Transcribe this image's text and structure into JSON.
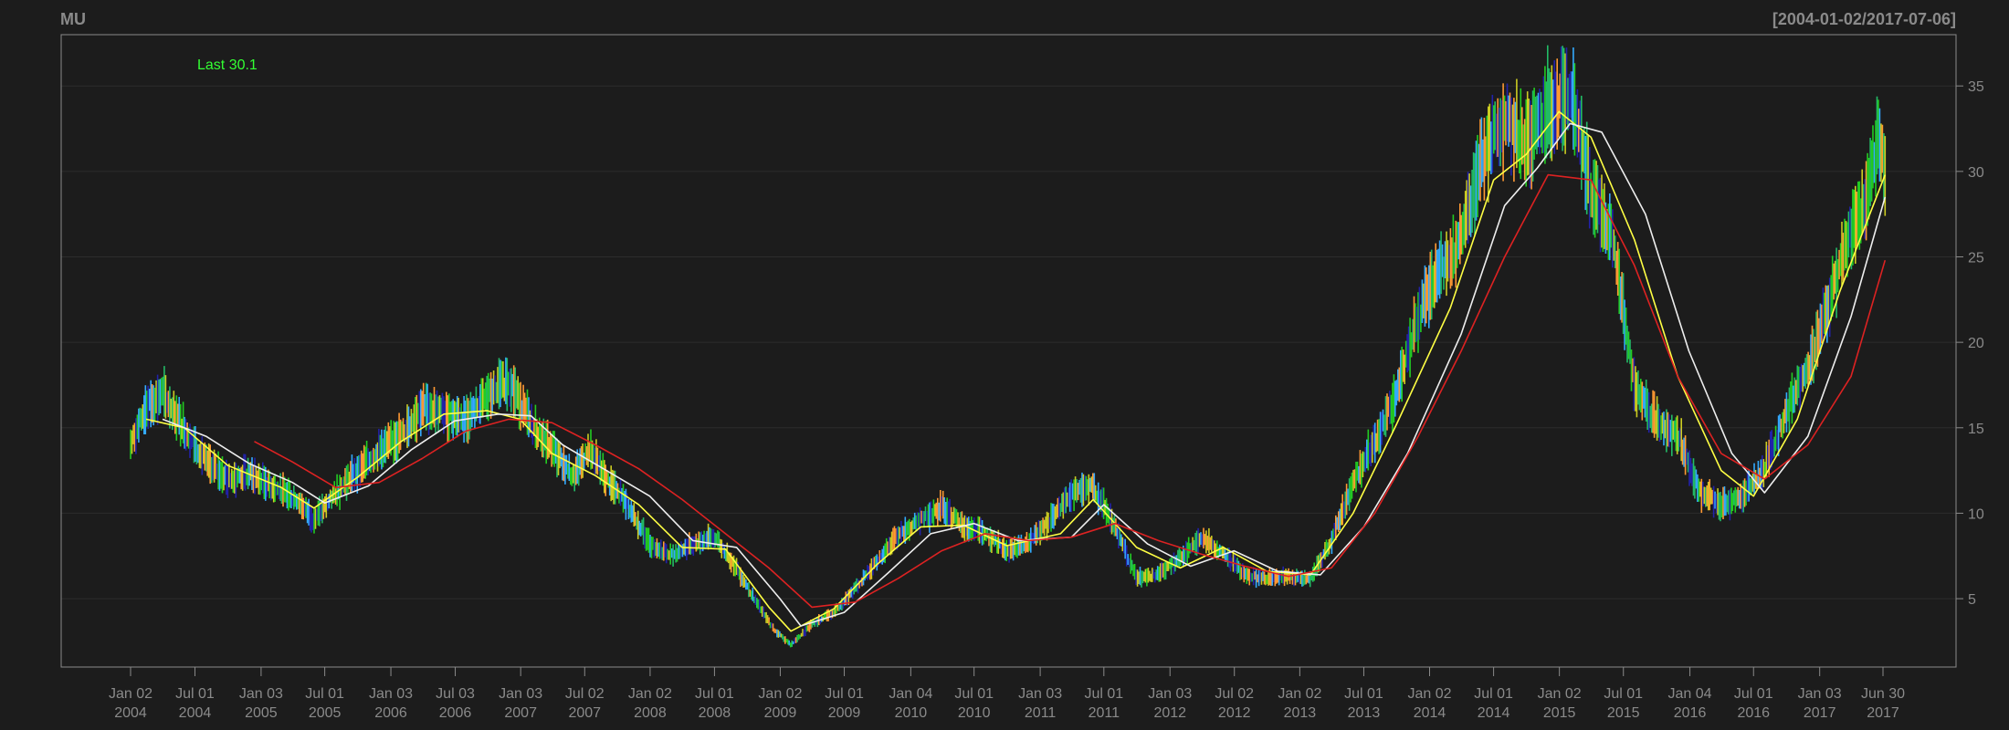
{
  "chart_data": {
    "type": "line",
    "title": "MU",
    "date_range": "[2004-01-02/2017-07-06]",
    "last_label": "Last 30.1",
    "ylim": [
      1,
      38
    ],
    "y_ticks": [
      5,
      10,
      15,
      20,
      25,
      30,
      35
    ],
    "x_ticks": [
      {
        "date": "2004-01-02",
        "line1": "Jan 02",
        "line2": "2004"
      },
      {
        "date": "2004-07-01",
        "line1": "Jul 01",
        "line2": "2004"
      },
      {
        "date": "2005-01-03",
        "line1": "Jan 03",
        "line2": "2005"
      },
      {
        "date": "2005-07-01",
        "line1": "Jul 01",
        "line2": "2005"
      },
      {
        "date": "2006-01-03",
        "line1": "Jan 03",
        "line2": "2006"
      },
      {
        "date": "2006-07-03",
        "line1": "Jul 03",
        "line2": "2006"
      },
      {
        "date": "2007-01-03",
        "line1": "Jan 03",
        "line2": "2007"
      },
      {
        "date": "2007-07-02",
        "line1": "Jul 02",
        "line2": "2007"
      },
      {
        "date": "2008-01-02",
        "line1": "Jan 02",
        "line2": "2008"
      },
      {
        "date": "2008-07-01",
        "line1": "Jul 01",
        "line2": "2008"
      },
      {
        "date": "2009-01-02",
        "line1": "Jan 02",
        "line2": "2009"
      },
      {
        "date": "2009-07-01",
        "line1": "Jul 01",
        "line2": "2009"
      },
      {
        "date": "2010-01-04",
        "line1": "Jan 04",
        "line2": "2010"
      },
      {
        "date": "2010-07-01",
        "line1": "Jul 01",
        "line2": "2010"
      },
      {
        "date": "2011-01-03",
        "line1": "Jan 03",
        "line2": "2011"
      },
      {
        "date": "2011-07-01",
        "line1": "Jul 01",
        "line2": "2011"
      },
      {
        "date": "2012-01-03",
        "line1": "Jan 03",
        "line2": "2012"
      },
      {
        "date": "2012-07-02",
        "line1": "Jul 02",
        "line2": "2012"
      },
      {
        "date": "2013-01-02",
        "line1": "Jan 02",
        "line2": "2013"
      },
      {
        "date": "2013-07-01",
        "line1": "Jul 01",
        "line2": "2013"
      },
      {
        "date": "2014-01-02",
        "line1": "Jan 02",
        "line2": "2014"
      },
      {
        "date": "2014-07-01",
        "line1": "Jul 01",
        "line2": "2014"
      },
      {
        "date": "2015-01-02",
        "line1": "Jan 02",
        "line2": "2015"
      },
      {
        "date": "2015-07-01",
        "line1": "Jul 01",
        "line2": "2015"
      },
      {
        "date": "2016-01-04",
        "line1": "Jan 04",
        "line2": "2016"
      },
      {
        "date": "2016-07-01",
        "line1": "Jul 01",
        "line2": "2016"
      },
      {
        "date": "2017-01-03",
        "line1": "Jan 03",
        "line2": "2017"
      },
      {
        "date": "2017-06-30",
        "line1": "Jun 30",
        "line2": "2017"
      }
    ],
    "price": {
      "x": [
        "2004-01-02",
        "2004-02-15",
        "2004-04-01",
        "2004-06-01",
        "2004-08-01",
        "2004-10-01",
        "2004-12-01",
        "2005-02-01",
        "2005-04-15",
        "2005-06-01",
        "2005-08-01",
        "2005-10-01",
        "2005-12-01",
        "2006-02-01",
        "2006-04-01",
        "2006-06-01",
        "2006-08-01",
        "2006-10-01",
        "2006-12-01",
        "2007-02-01",
        "2007-04-01",
        "2007-06-01",
        "2007-07-15",
        "2007-09-01",
        "2007-11-01",
        "2008-01-01",
        "2008-03-01",
        "2008-05-01",
        "2008-07-01",
        "2008-09-01",
        "2008-11-01",
        "2008-12-15",
        "2009-02-01",
        "2009-04-01",
        "2009-06-01",
        "2009-08-01",
        "2009-10-01",
        "2009-12-01",
        "2010-02-01",
        "2010-04-01",
        "2010-06-01",
        "2010-08-01",
        "2010-10-01",
        "2010-12-01",
        "2011-02-01",
        "2011-04-01",
        "2011-06-01",
        "2011-08-01",
        "2011-10-01",
        "2011-12-01",
        "2012-02-01",
        "2012-04-01",
        "2012-06-01",
        "2012-08-01",
        "2012-10-01",
        "2012-12-01",
        "2013-02-01",
        "2013-04-01",
        "2013-06-01",
        "2013-08-01",
        "2013-10-01",
        "2013-12-01",
        "2014-02-01",
        "2014-04-01",
        "2014-06-01",
        "2014-08-01",
        "2014-10-01",
        "2014-12-01",
        "2015-02-01",
        "2015-04-01",
        "2015-06-01",
        "2015-08-01",
        "2015-10-01",
        "2015-12-01",
        "2016-02-01",
        "2016-04-01",
        "2016-06-01",
        "2016-08-01",
        "2016-10-01",
        "2016-12-01",
        "2017-02-01",
        "2017-04-01",
        "2017-05-15",
        "2017-06-15",
        "2017-07-06"
      ],
      "values": [
        14.0,
        16.2,
        17.0,
        15.0,
        13.0,
        12.0,
        12.3,
        11.6,
        10.8,
        9.6,
        11.2,
        12.5,
        13.6,
        14.6,
        16.2,
        15.9,
        15.5,
        16.8,
        17.8,
        15.2,
        13.8,
        12.1,
        13.8,
        12.0,
        10.5,
        8.2,
        7.5,
        8.2,
        8.6,
        6.8,
        4.6,
        3.2,
        2.3,
        3.5,
        4.2,
        5.6,
        7.2,
        8.8,
        9.6,
        10.4,
        9.2,
        8.8,
        7.8,
        8.2,
        9.6,
        11.2,
        11.5,
        9.2,
        6.2,
        6.4,
        7.4,
        8.6,
        7.6,
        6.4,
        6.2,
        6.3,
        6.1,
        8.4,
        11.8,
        14.2,
        17.0,
        21.5,
        24.2,
        26.0,
        31.0,
        33.0,
        31.5,
        33.8,
        34.5,
        29.0,
        26.2,
        17.4,
        15.4,
        14.6,
        11.2,
        10.5,
        11.0,
        12.6,
        16.0,
        18.5,
        22.5,
        26.5,
        28.2,
        31.8,
        30.1
      ]
    },
    "series": [
      {
        "color": "#ffff44",
        "x": [
          "2004-02-15",
          "2004-06-01",
          "2004-10-01",
          "2005-03-01",
          "2005-06-01",
          "2005-10-01",
          "2006-02-01",
          "2006-06-01",
          "2006-10-01",
          "2007-01-01",
          "2007-04-01",
          "2007-08-01",
          "2007-12-01",
          "2008-04-01",
          "2008-08-01",
          "2008-12-01",
          "2009-02-01",
          "2009-06-01",
          "2009-10-01",
          "2010-02-01",
          "2010-06-01",
          "2010-10-01",
          "2011-03-01",
          "2011-06-01",
          "2011-10-01",
          "2012-02-01",
          "2012-06-01",
          "2012-10-01",
          "2013-02-01",
          "2013-06-01",
          "2013-10-01",
          "2014-03-01",
          "2014-07-01",
          "2014-10-01",
          "2015-01-01",
          "2015-04-01",
          "2015-08-01",
          "2015-12-01",
          "2016-04-01",
          "2016-07-01",
          "2016-11-01",
          "2017-03-01",
          "2017-07-06"
        ],
        "values": [
          15.5,
          15.0,
          12.8,
          11.5,
          10.3,
          12.1,
          14.2,
          15.8,
          16.0,
          15.5,
          13.5,
          12.2,
          10.5,
          8.0,
          7.9,
          4.5,
          3.1,
          4.4,
          7.0,
          9.2,
          9.3,
          8.1,
          8.8,
          10.8,
          8.0,
          6.8,
          8.0,
          6.6,
          6.4,
          10.0,
          15.2,
          22.0,
          29.5,
          31.0,
          33.5,
          32.0,
          26.0,
          18.0,
          12.5,
          11.0,
          15.5,
          23.0,
          29.8
        ]
      },
      {
        "color": "#eeeeee",
        "x": [
          "2004-04-01",
          "2004-08-01",
          "2004-12-01",
          "2005-04-01",
          "2005-07-01",
          "2005-11-01",
          "2006-03-01",
          "2006-07-01",
          "2006-11-01",
          "2007-02-01",
          "2007-05-01",
          "2007-09-01",
          "2008-01-01",
          "2008-05-01",
          "2008-09-01",
          "2009-01-01",
          "2009-03-01",
          "2009-07-01",
          "2009-11-01",
          "2010-03-01",
          "2010-07-01",
          "2010-11-01",
          "2011-04-01",
          "2011-07-01",
          "2011-11-01",
          "2012-03-01",
          "2012-07-01",
          "2012-11-01",
          "2013-03-01",
          "2013-07-01",
          "2013-11-01",
          "2014-04-01",
          "2014-08-01",
          "2014-11-01",
          "2015-02-01",
          "2015-05-01",
          "2015-09-01",
          "2016-01-01",
          "2016-05-01",
          "2016-08-01",
          "2016-12-01",
          "2017-04-01",
          "2017-07-06"
        ],
        "values": [
          15.5,
          14.5,
          12.9,
          11.8,
          10.6,
          11.6,
          13.7,
          15.4,
          15.8,
          15.7,
          14.0,
          12.5,
          11.0,
          8.4,
          8.0,
          5.0,
          3.4,
          4.2,
          6.5,
          8.8,
          9.4,
          8.4,
          8.6,
          10.5,
          8.2,
          6.9,
          7.8,
          6.6,
          6.4,
          9.2,
          13.5,
          20.5,
          28.0,
          30.2,
          32.8,
          32.3,
          27.5,
          19.5,
          13.5,
          11.2,
          14.5,
          21.5,
          28.5
        ]
      },
      {
        "color": "#dd2222",
        "x": [
          "2004-12-15",
          "2005-04-01",
          "2005-08-01",
          "2005-12-01",
          "2006-04-01",
          "2006-08-01",
          "2006-12-01",
          "2007-04-01",
          "2007-08-01",
          "2007-12-01",
          "2008-04-01",
          "2008-08-01",
          "2008-12-01",
          "2009-04-01",
          "2009-08-01",
          "2009-12-01",
          "2010-04-01",
          "2010-08-01",
          "2010-12-01",
          "2011-04-01",
          "2011-08-01",
          "2011-12-01",
          "2012-04-01",
          "2012-08-01",
          "2012-12-01",
          "2013-04-01",
          "2013-08-01",
          "2013-12-01",
          "2014-04-01",
          "2014-08-01",
          "2014-12-01",
          "2015-04-01",
          "2015-08-01",
          "2015-12-01",
          "2016-04-01",
          "2016-08-01",
          "2016-12-01",
          "2017-04-01",
          "2017-07-06"
        ],
        "values": [
          14.2,
          13.0,
          11.5,
          11.8,
          13.2,
          14.8,
          15.5,
          15.3,
          14.0,
          12.6,
          10.8,
          8.8,
          6.8,
          4.5,
          4.8,
          6.2,
          7.8,
          8.8,
          8.4,
          8.6,
          9.4,
          8.4,
          7.6,
          6.9,
          6.3,
          6.8,
          10.0,
          14.5,
          19.5,
          25.0,
          29.8,
          29.5,
          24.5,
          18.0,
          13.5,
          12.0,
          14.0,
          18.0,
          24.8
        ]
      }
    ]
  }
}
